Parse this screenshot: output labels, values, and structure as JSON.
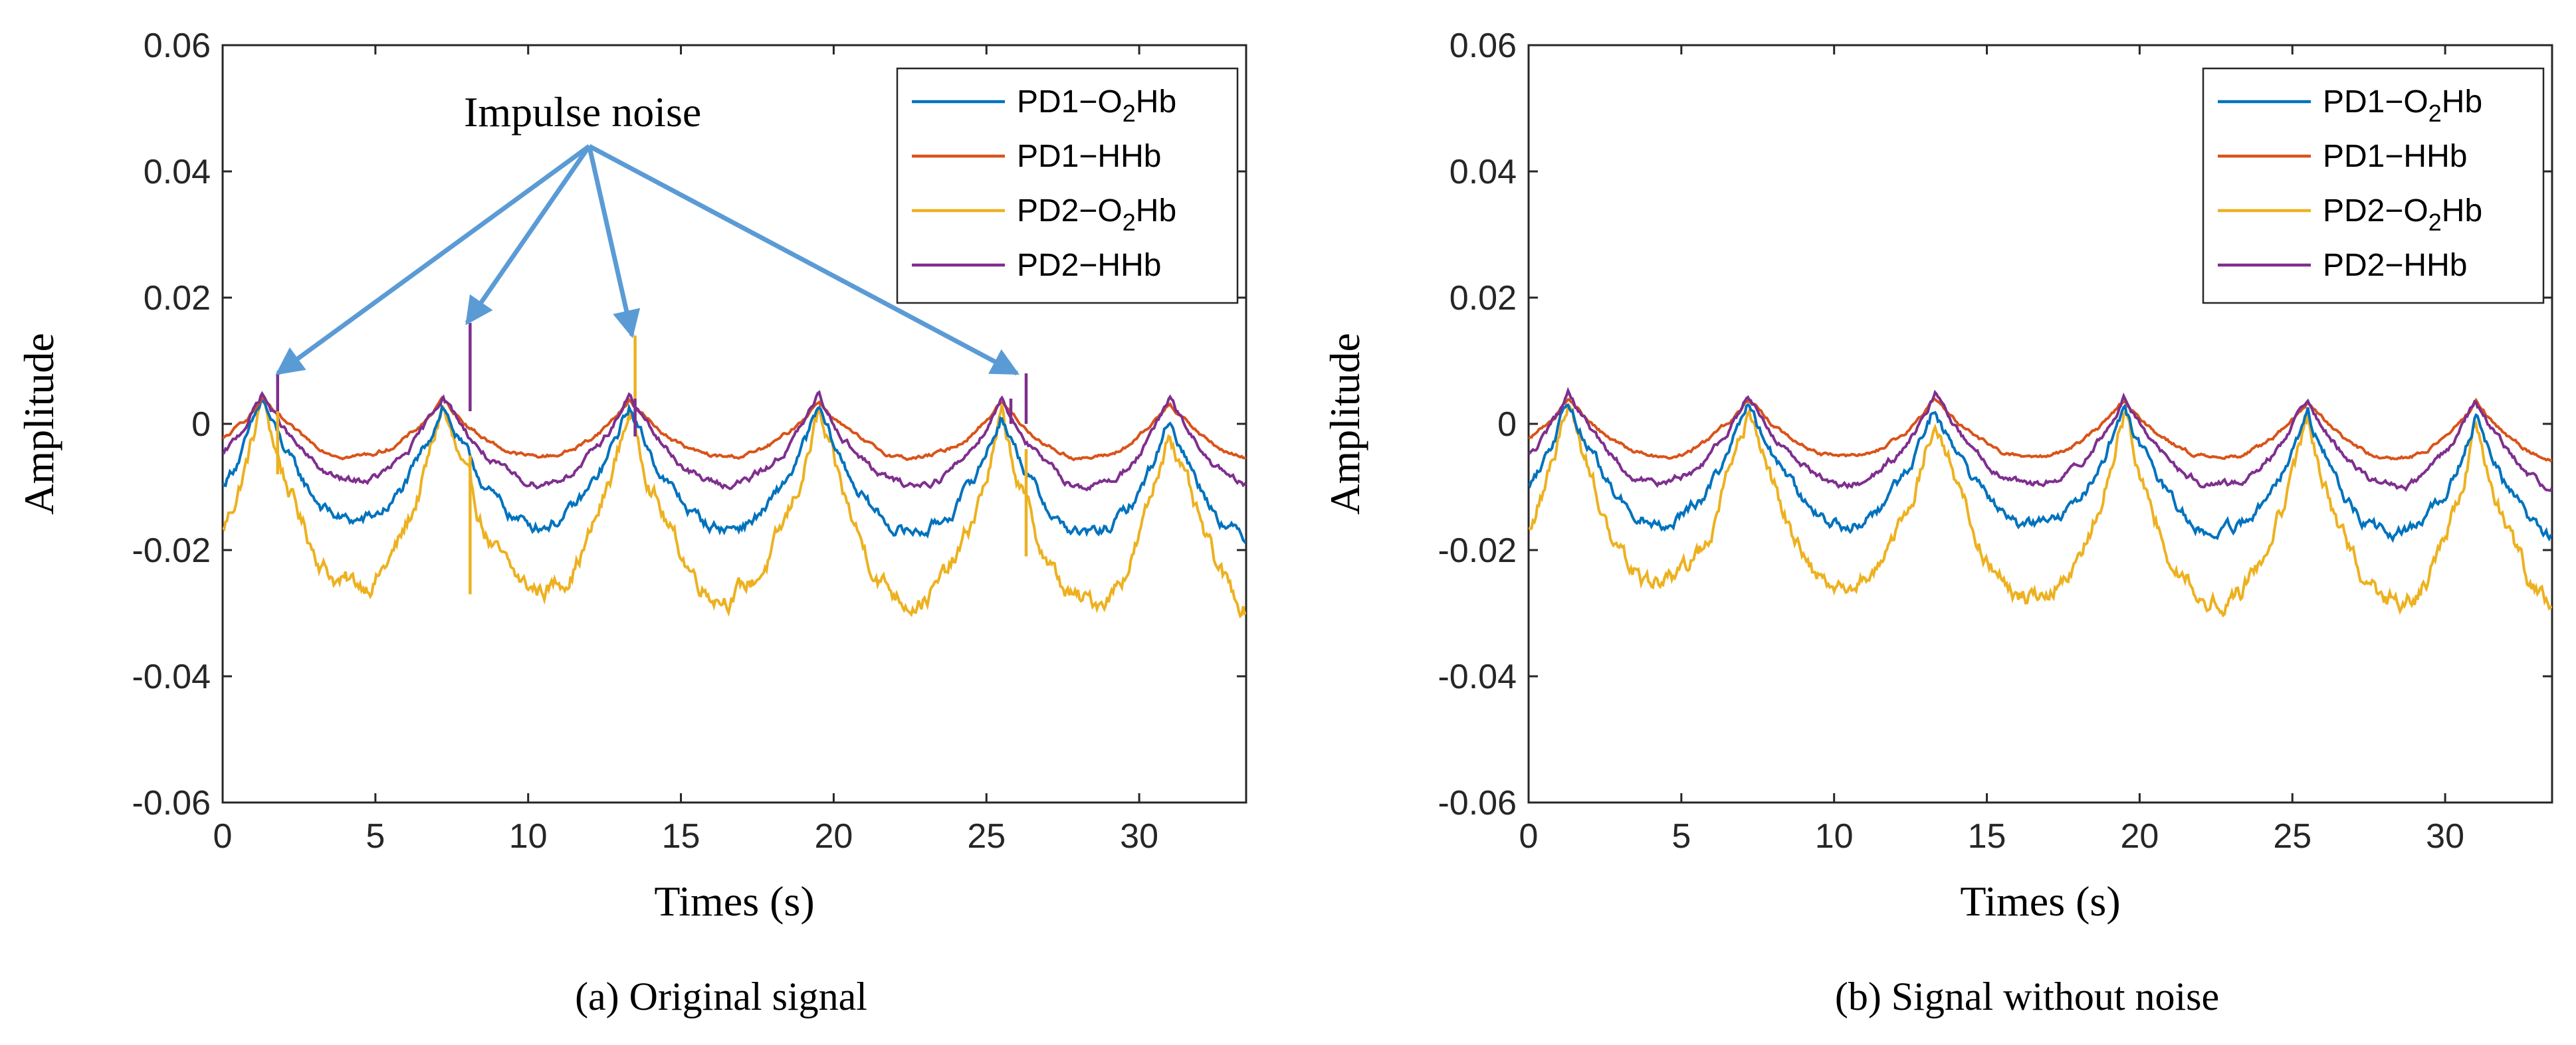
{
  "figure_captions": [
    "(a) Original signal",
    "(b) Signal without noise"
  ],
  "colors": {
    "PD1-O2Hb": "#0072BD",
    "PD1-HHb": "#D95319",
    "PD2-O2Hb": "#EDB120",
    "PD2-HHb": "#7E2F8E",
    "arrow": "#5B9BD5",
    "axes": "#262626"
  },
  "chart_data": [
    {
      "type": "line",
      "panel": "a",
      "title": "",
      "caption": "(a) Original signal",
      "xlabel": "Times (s)",
      "ylabel": "Amplitude",
      "xlim": [
        0,
        33.5
      ],
      "ylim": [
        -0.06,
        0.06
      ],
      "xticks": [
        0,
        5,
        10,
        15,
        20,
        25,
        30
      ],
      "yticks": [
        -0.06,
        -0.04,
        -0.02,
        0,
        0.02,
        0.04,
        0.06
      ],
      "xtick_labels": [
        "0",
        "5",
        "10",
        "15",
        "20",
        "25",
        "30"
      ],
      "ytick_labels": [
        "-0.06",
        "-0.04",
        "-0.02",
        "0",
        "0.02",
        "0.04",
        "0.06"
      ],
      "legend_position": "top-right",
      "legend": [
        {
          "key": "PD1-O2Hb",
          "pre": "PD1−O",
          "sub": "2",
          "post": "Hb"
        },
        {
          "key": "PD1-HHb",
          "pre": "PD1−HHb",
          "sub": "",
          "post": ""
        },
        {
          "key": "PD2-O2Hb",
          "pre": "PD2−O",
          "sub": "2",
          "post": "Hb"
        },
        {
          "key": "PD2-HHb",
          "pre": "PD2−HHb",
          "sub": "",
          "post": ""
        }
      ],
      "annotation": {
        "text": "Impulse noise",
        "targets_x": [
          1.8,
          8.0,
          13.4,
          26.0
        ],
        "targets_y": [
          0.008,
          0.016,
          0.014,
          0.008
        ],
        "origin_x": 12.0,
        "origin_y": 0.044
      },
      "impulses": [
        {
          "series": "PD2-HHb",
          "x": 1.8,
          "top": 0.008,
          "bottom": 0.002
        },
        {
          "series": "PD2-O2Hb",
          "x": 1.8,
          "top": 0.002,
          "bottom": -0.008
        },
        {
          "series": "PD2-HHb",
          "x": 8.1,
          "top": 0.016,
          "bottom": 0.002
        },
        {
          "series": "PD2-O2Hb",
          "x": 8.1,
          "top": -0.005,
          "bottom": -0.027
        },
        {
          "series": "PD2-O2Hb",
          "x": 13.5,
          "top": 0.014,
          "bottom": 0.004
        },
        {
          "series": "PD2-HHb",
          "x": 13.5,
          "top": 0.004,
          "bottom": -0.002
        },
        {
          "series": "PD2-HHb",
          "x": 25.8,
          "top": 0.004,
          "bottom": 0.0
        },
        {
          "series": "PD2-HHb",
          "x": 26.3,
          "top": 0.008,
          "bottom": 0.0
        },
        {
          "series": "PD2-O2Hb",
          "x": 26.3,
          "top": -0.004,
          "bottom": -0.021
        }
      ],
      "peaks_x": [
        1.3,
        7.2,
        13.3,
        19.5,
        25.5,
        31.0
      ],
      "series_params": [
        {
          "name": "PD1-O2Hb",
          "peak": 0.004,
          "trough": -0.015,
          "drift": -0.003
        },
        {
          "name": "PD1-HHb",
          "peak": 0.004,
          "trough": -0.005,
          "drift": -0.0005
        },
        {
          "name": "PD2-O2Hb",
          "peak": 0.004,
          "trough": -0.025,
          "drift": -0.004
        },
        {
          "name": "PD2-HHb",
          "peak": 0.005,
          "trough": -0.009,
          "drift": -0.001
        }
      ]
    },
    {
      "type": "line",
      "panel": "b",
      "title": "",
      "caption": "(b) Signal without noise",
      "xlabel": "Times (s)",
      "ylabel": "Amplitude",
      "xlim": [
        0,
        33.5
      ],
      "ylim": [
        -0.06,
        0.06
      ],
      "xticks": [
        0,
        5,
        10,
        15,
        20,
        25,
        30
      ],
      "yticks": [
        -0.06,
        -0.04,
        -0.02,
        0,
        0.02,
        0.04,
        0.06
      ],
      "xtick_labels": [
        "0",
        "5",
        "10",
        "15",
        "20",
        "25",
        "30"
      ],
      "ytick_labels": [
        "-0.06",
        "-0.04",
        "-0.02",
        "0",
        "0.02",
        "0.04",
        "0.06"
      ],
      "legend_position": "top-right",
      "legend": [
        {
          "key": "PD1-O2Hb",
          "pre": "PD1−O",
          "sub": "2",
          "post": "Hb"
        },
        {
          "key": "PD1-HHb",
          "pre": "PD1−HHb",
          "sub": "",
          "post": ""
        },
        {
          "key": "PD2-O2Hb",
          "pre": "PD2−O",
          "sub": "2",
          "post": "Hb"
        },
        {
          "key": "PD2-HHb",
          "pre": "PD2−HHb",
          "sub": "",
          "post": ""
        }
      ],
      "peaks_x": [
        1.3,
        7.2,
        13.3,
        19.5,
        25.5,
        31.0
      ],
      "series_params": [
        {
          "name": "PD1-O2Hb",
          "peak": 0.004,
          "trough": -0.015,
          "drift": -0.003
        },
        {
          "name": "PD1-HHb",
          "peak": 0.004,
          "trough": -0.005,
          "drift": -0.0005
        },
        {
          "name": "PD2-O2Hb",
          "peak": 0.004,
          "trough": -0.025,
          "drift": -0.004
        },
        {
          "name": "PD2-HHb",
          "peak": 0.005,
          "trough": -0.009,
          "drift": -0.001
        }
      ]
    }
  ]
}
